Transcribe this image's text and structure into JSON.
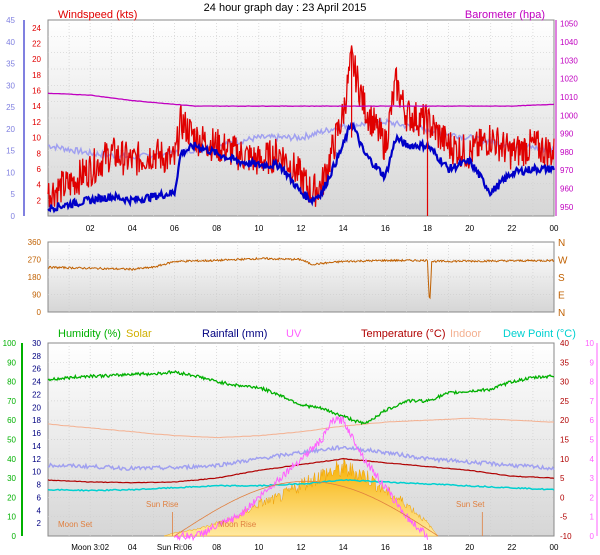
{
  "title": "24 hour graph day : 23 April 2015",
  "colors": {
    "wind": "#e00000",
    "gust": "#0000c8",
    "avgwind": "#a0a0f0",
    "baro": "#c000c0",
    "dir": "#c06000",
    "humidity": "#00b000",
    "solar": "#f0a000",
    "rain": "#000080",
    "uv": "#ff60ff",
    "temp": "#b00000",
    "indoor": "#f4b090",
    "dew": "#00d0d0",
    "moon": "#e08040"
  },
  "hours": [
    "02",
    "04",
    "06",
    "08",
    "10",
    "12",
    "14",
    "16",
    "18",
    "20",
    "22",
    "00"
  ],
  "panel1": {
    "left_title": "Windspeed (kts)",
    "right_title": "Barometer (hpa)",
    "left_ticks": [
      "2",
      "4",
      "6",
      "8",
      "10",
      "12",
      "14",
      "16",
      "18",
      "20",
      "22",
      "24"
    ],
    "left_ticks2": [
      "0",
      "5",
      "10",
      "15",
      "20",
      "25",
      "30",
      "35",
      "40",
      "45"
    ],
    "right_ticks": [
      "950",
      "960",
      "970",
      "980",
      "990",
      "1000",
      "1010",
      "1020",
      "1030",
      "1040",
      "1050"
    ]
  },
  "panel2": {
    "left_ticks": [
      "0",
      "90",
      "180",
      "270",
      "360"
    ],
    "compass": [
      "N",
      "W",
      "S",
      "E",
      "N"
    ]
  },
  "panel3": {
    "labels": {
      "humidity": "Humidity (%)",
      "solar": "Solar",
      "rain": "Rainfall (mm)",
      "uv": "UV",
      "temp": "Temperature (°C)",
      "indoor": "Indoor",
      "dew": "Dew Point (°C)"
    },
    "green_ticks": [
      "0",
      "10",
      "20",
      "30",
      "40",
      "50",
      "60",
      "70",
      "80",
      "90",
      "100"
    ],
    "rain_ticks": [
      "2",
      "4",
      "6",
      "8",
      "10",
      "12",
      "14",
      "16",
      "18",
      "20",
      "22",
      "24",
      "26",
      "28",
      "30"
    ],
    "temp_ticks": [
      "-10",
      "-5",
      "0",
      "5",
      "10",
      "15",
      "20",
      "25",
      "30",
      "35",
      "40"
    ],
    "uv_ticks": [
      "0",
      "1",
      "2",
      "3",
      "4",
      "5",
      "6",
      "7",
      "8",
      "9",
      "10"
    ],
    "events": {
      "moon_set": "Moon Set",
      "sun_rise": "Sun Rise",
      "moon_rise": "Moon Rise",
      "sun_set": "Sun Set"
    },
    "bottom_hours": [
      "Moon 3:02",
      "04",
      "Sun Ri:06",
      "08",
      "10",
      "12",
      "14",
      "16",
      "18",
      "20",
      "22",
      "00"
    ]
  },
  "chart_data": [
    {
      "type": "line",
      "title": "24 hour graph day : 23 April 2015",
      "x_unit": "hour",
      "xlim": [
        0,
        24
      ],
      "ylabel": "Windspeed (kts)",
      "y2label": "Barometer (hpa)",
      "ylim": [
        0,
        25
      ],
      "y2lim": [
        945,
        1052
      ],
      "series": [
        {
          "name": "Windspeed (kts)",
          "x": [
            0,
            1,
            2,
            3,
            4,
            5,
            6,
            6.3,
            7,
            8,
            9,
            10,
            11,
            12,
            12.5,
            13,
            14,
            14.4,
            15,
            16,
            16.5,
            17,
            18,
            19,
            20,
            21,
            22,
            23,
            24
          ],
          "y": [
            3,
            4,
            6,
            8,
            7,
            8,
            7,
            12,
            10,
            9,
            8,
            7,
            8,
            5,
            3,
            4,
            13,
            20,
            14,
            9,
            17,
            13,
            12,
            9,
            8,
            10,
            8,
            9,
            8
          ]
        },
        {
          "name": "Gust",
          "x": [
            0,
            1,
            2,
            3,
            4,
            5,
            6,
            6.3,
            7,
            8,
            9,
            10,
            11,
            12,
            12.5,
            13,
            14,
            14.4,
            15,
            16,
            16.5,
            17,
            18,
            19,
            20,
            21,
            22,
            23,
            24
          ],
          "y": [
            1,
            1.5,
            2,
            2.5,
            2,
            2.5,
            3,
            8,
            9,
            8,
            7,
            6.5,
            6.5,
            3,
            2,
            3,
            9,
            12,
            8,
            5,
            10,
            9,
            9,
            6,
            7,
            3,
            5.5,
            6,
            6
          ]
        },
        {
          "name": "Average windspeed",
          "x": [
            0,
            2,
            4,
            6,
            8,
            10,
            12,
            14,
            16,
            18,
            20,
            22,
            24
          ],
          "y": [
            9,
            8,
            7.5,
            8,
            9,
            10,
            10,
            11.5,
            12,
            11,
            10,
            9,
            8.5
          ]
        },
        {
          "name": "Barometer (hpa)",
          "x": [
            0,
            2,
            4,
            6,
            7,
            8,
            10,
            12,
            14,
            16,
            18,
            20,
            22,
            24
          ],
          "y2": [
            1012,
            1011,
            1008,
            1006,
            1005,
            1005,
            1005,
            1005,
            1005,
            1005,
            1005,
            1005,
            1005,
            1006
          ]
        }
      ]
    },
    {
      "type": "line",
      "ylabel": "Wind direction",
      "ylim": [
        0,
        360
      ],
      "series": [
        {
          "name": "Wind direction",
          "x": [
            0,
            2,
            4,
            5,
            6,
            8,
            10,
            12,
            12.5,
            14,
            16,
            18,
            18.1,
            18.2,
            20,
            22,
            24
          ],
          "y": [
            230,
            225,
            220,
            230,
            260,
            265,
            275,
            270,
            245,
            260,
            265,
            265,
            30,
            260,
            262,
            263,
            265
          ]
        }
      ]
    },
    {
      "type": "line",
      "series": [
        {
          "name": "Humidity (%)",
          "x": [
            0,
            1,
            2,
            3,
            4,
            5,
            6,
            7,
            8,
            9,
            10,
            11,
            12,
            13,
            14,
            15,
            16,
            17,
            18,
            19,
            20,
            21,
            22,
            23,
            24
          ],
          "y": [
            81,
            82,
            83,
            83,
            84,
            84,
            85,
            83,
            80,
            78,
            77,
            73,
            68,
            66,
            62,
            58,
            65,
            70,
            70,
            74,
            75,
            76,
            80,
            82,
            83
          ]
        },
        {
          "name": "Temperature (°C)",
          "x": [
            0,
            2,
            4,
            6,
            8,
            10,
            12,
            14,
            16,
            18,
            20,
            22,
            24
          ],
          "y": [
            4.5,
            4,
            3.8,
            4,
            5,
            7,
            8.5,
            10,
            9,
            8,
            7,
            5.5,
            5
          ]
        },
        {
          "name": "Indoor",
          "x": [
            0,
            2,
            4,
            6,
            8,
            10,
            12,
            14,
            16,
            18,
            20,
            22,
            24
          ],
          "y": [
            19,
            18,
            17,
            16,
            15.5,
            16,
            17,
            18.5,
            19.5,
            20,
            20.5,
            20,
            19.5
          ]
        },
        {
          "name": "Dew Point (°C)",
          "x": [
            0,
            2,
            4,
            6,
            8,
            10,
            12,
            14,
            16,
            18,
            20,
            22,
            24
          ],
          "y": [
            2,
            1.8,
            2,
            2.5,
            3,
            3,
            3.5,
            4.5,
            4,
            3.5,
            3,
            2.5,
            2
          ]
        },
        {
          "name": "Rainfall (mm)",
          "x": [
            0,
            2,
            4,
            6,
            8,
            10,
            12,
            14,
            16,
            18,
            20,
            22,
            24
          ],
          "y": [
            11,
            10.8,
            10.5,
            10.6,
            11,
            12,
            13,
            13.8,
            13,
            12,
            11.5,
            11,
            10.5
          ]
        },
        {
          "name": "Solar",
          "x": [
            5.5,
            6,
            7,
            8,
            9,
            10,
            11,
            12,
            13,
            14,
            15,
            16,
            17,
            18,
            18.5
          ],
          "y": [
            0,
            0.5,
            1,
            2,
            3,
            5,
            6,
            8,
            9.5,
            10.5,
            9.5,
            7,
            5,
            2,
            0
          ]
        },
        {
          "name": "UV",
          "x": [
            6,
            7,
            8,
            9,
            10,
            11,
            12,
            13,
            13.5,
            14,
            15,
            16,
            17,
            18
          ],
          "y": [
            0,
            0,
            0.5,
            1,
            2,
            3,
            4,
            5,
            6,
            6,
            4,
            2.5,
            1,
            0
          ]
        }
      ]
    }
  ]
}
